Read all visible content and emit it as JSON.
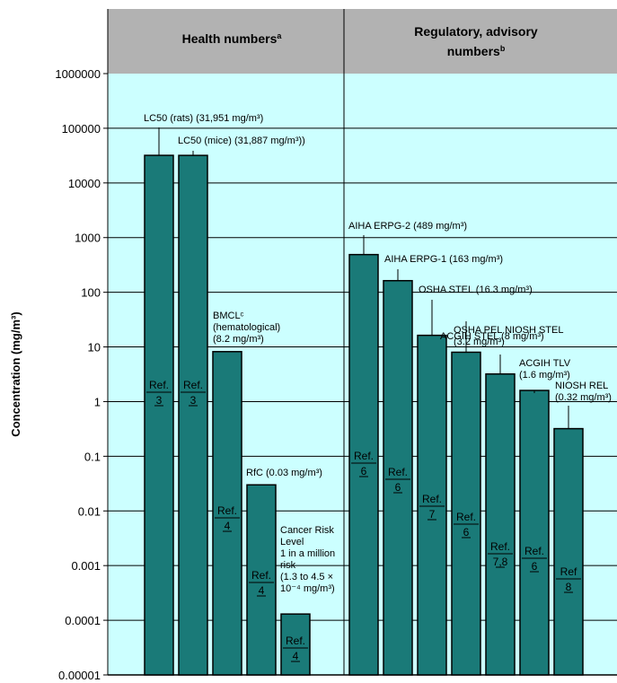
{
  "chart_data": {
    "type": "bar",
    "yscale": "log",
    "ylim": [
      1e-05,
      1000000
    ],
    "ylabel": "Concentration (mg/m³)",
    "yticks": [
      "1000000",
      "100000",
      "10000",
      "1000",
      "100",
      "10",
      "1",
      "0.1",
      "0.01",
      "0.001",
      "0.0001",
      "0.00001"
    ],
    "grid": true,
    "groups": [
      {
        "header": "Health numbers",
        "header_sup": "a"
      },
      {
        "header": "Regulatory, advisory numbers",
        "header_sup": "b"
      }
    ],
    "bars": [
      {
        "group": 0,
        "value": 31951,
        "annotation": [
          "LC50 (rats) (31,951 mg/m³)"
        ],
        "ref": [
          "Ref.",
          "3"
        ]
      },
      {
        "group": 0,
        "value": 31887,
        "annotation": [
          "LC50 (mice) (31,887 mg/m³))"
        ],
        "ref": [
          "Ref.",
          "3"
        ]
      },
      {
        "group": 0,
        "value": 8.2,
        "annotation": [
          "BMCLᶜ",
          "(hematological)",
          "(8.2 mg/m³)"
        ],
        "ref": [
          "Ref.",
          "4"
        ]
      },
      {
        "group": 0,
        "value": 0.03,
        "annotation": [
          "RfC (0.03 mg/m³)"
        ],
        "ref": [
          "Ref.",
          "4"
        ]
      },
      {
        "group": 0,
        "value": 0.00013,
        "annotation": [
          "Cancer Risk",
          "Level",
          "1 in a million",
          "risk",
          "(1.3 to 4.5 ×",
          "10⁻⁴ mg/m³)"
        ],
        "ref": [
          "Ref.",
          "4"
        ]
      },
      {
        "group": 1,
        "value": 489,
        "annotation": [
          "AIHA ERPG-2 (489 mg/m³)"
        ],
        "ref": [
          "Ref.",
          "6"
        ]
      },
      {
        "group": 1,
        "value": 163,
        "annotation": [
          "AIHA ERPG-1 (163 mg/m³)"
        ],
        "ref": [
          "Ref.",
          "6"
        ]
      },
      {
        "group": 1,
        "value": 16.3,
        "annotation": [
          "OSHA STEL (16.3 mg/m³)"
        ],
        "ref": [
          "Ref.",
          "7"
        ]
      },
      {
        "group": 1,
        "value": 8,
        "annotation": [
          "ACGIH STEL (8 mg/m³)"
        ],
        "ref": [
          "Ref.",
          "6"
        ]
      },
      {
        "group": 1,
        "value": 3.2,
        "annotation": [
          "OSHA PEL NIOSH STEL",
          "(3.2 mg/m³)"
        ],
        "ref": [
          "Ref.",
          "7,8"
        ]
      },
      {
        "group": 1,
        "value": 1.6,
        "annotation": [
          "ACGIH TLV",
          "(1.6 mg/m³)"
        ],
        "ref": [
          "Ref.",
          "6"
        ]
      },
      {
        "group": 1,
        "value": 0.32,
        "annotation": [
          "NIOSH REL",
          "(0.32 mg/m³)"
        ],
        "ref": [
          "Ref",
          "8"
        ]
      }
    ]
  },
  "colors": {
    "plot_bg": "#ccffff",
    "header_bg": "#b2b2b2",
    "bar_fill": "#1a7a78",
    "bar_stroke": "#000000"
  }
}
